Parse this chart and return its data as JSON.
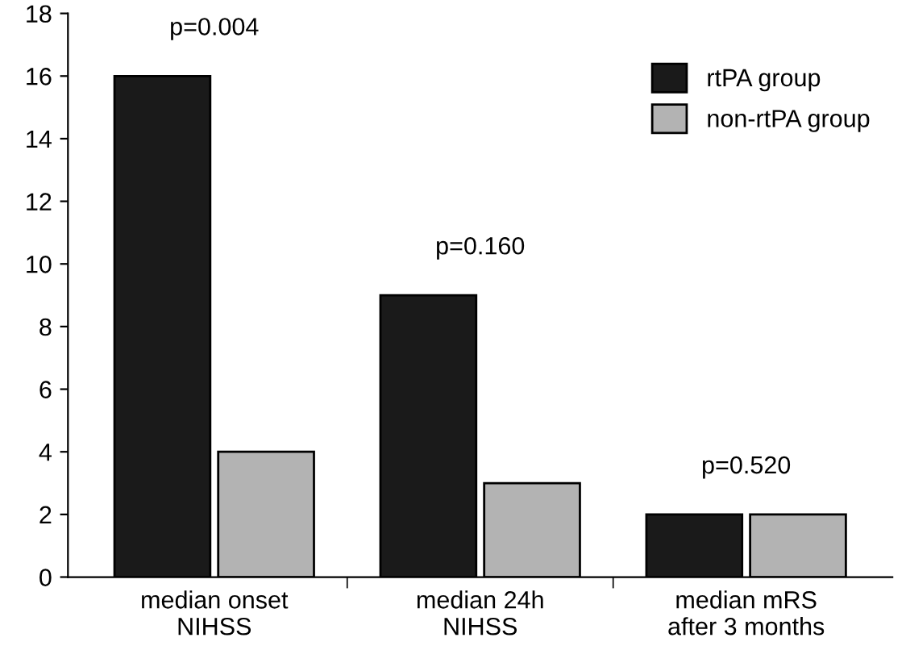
{
  "chart_data": {
    "type": "bar",
    "categories": [
      "median onset\nNIHSS",
      "median 24h\nNIHSS",
      "median mRS\nafter 3 months"
    ],
    "series": [
      {
        "name": "rtPA group",
        "color": "#1a1a1a",
        "values": [
          16,
          9,
          2
        ]
      },
      {
        "name": "non-rtPA group",
        "color": "#b3b3b3",
        "values": [
          4,
          3,
          2
        ]
      }
    ],
    "ylim": [
      0,
      18
    ],
    "yticks": [
      0,
      2,
      4,
      6,
      8,
      10,
      12,
      14,
      16,
      18
    ],
    "grid": false,
    "legend": "top right",
    "annotations": [
      "p=0.004",
      "p=0.160",
      "p=0.520"
    ]
  }
}
